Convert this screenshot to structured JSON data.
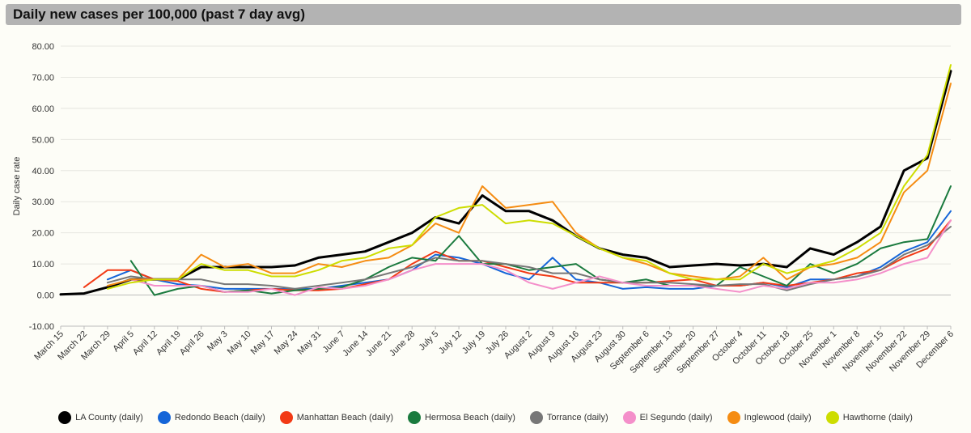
{
  "header": {
    "title": "Daily new cases per 100,000 (past 7 day avg)"
  },
  "chart_data": {
    "type": "line",
    "title": "Daily new cases per 100,000 (past 7 day avg)",
    "xlabel": "",
    "ylabel": "Daily case rate",
    "ylim": [
      -10,
      80
    ],
    "yticks": [
      "-10.00",
      "0.00",
      "10.00",
      "20.00",
      "30.00",
      "40.00",
      "50.00",
      "60.00",
      "70.00",
      "80.00"
    ],
    "grid": true,
    "legend_position": "bottom",
    "x_start": "March 15",
    "x_end": "December 6",
    "x_tick_labels": [
      "March 15",
      "March 22",
      "March 29",
      "April 5",
      "April 12",
      "April 19",
      "April 26",
      "May 3",
      "May 10",
      "May 17",
      "May 24",
      "May 31",
      "June 7",
      "June 14",
      "June 21",
      "June 28",
      "July 5",
      "July 12",
      "July 19",
      "July 26",
      "August 2",
      "August 9",
      "August 16",
      "August 23",
      "August 30",
      "September 6",
      "September 13",
      "September 20",
      "September 27",
      "October 4",
      "October 11",
      "October 18",
      "October 25",
      "November 1",
      "November 8",
      "November 15",
      "November 22",
      "November 29",
      "December 6"
    ],
    "series": [
      {
        "name": "LA County (daily)",
        "color": "#000000",
        "weekly_values": [
          0.2,
          0.5,
          2.5,
          5,
          5,
          5,
          9,
          9,
          9,
          9,
          9.5,
          12,
          13,
          14,
          17,
          20,
          25,
          23,
          32,
          27,
          27,
          24,
          19,
          15,
          13,
          12,
          9,
          9.5,
          10,
          9.5,
          10,
          9,
          15,
          13,
          17,
          22,
          40,
          44,
          72
        ]
      },
      {
        "name": "Redondo Beach (daily)",
        "color": "#1565d8",
        "weekly_values": [
          null,
          null,
          5,
          8,
          5,
          3.5,
          3,
          2,
          2,
          2,
          2,
          2,
          3,
          4,
          5,
          8,
          13,
          12,
          10,
          7,
          5,
          12,
          5,
          4,
          2,
          2.5,
          2,
          2,
          3,
          3,
          4,
          2.5,
          5,
          5,
          6,
          9,
          14,
          17,
          27
        ]
      },
      {
        "name": "Manhattan Beach (daily)",
        "color": "#f23a15",
        "weekly_values": [
          null,
          2.5,
          8,
          8,
          5,
          4.5,
          2,
          1,
          1.5,
          2,
          1.5,
          1.5,
          2,
          3.5,
          5,
          10,
          14,
          11,
          11,
          9,
          7,
          6,
          4,
          4,
          4,
          4,
          4.5,
          5,
          3,
          3,
          4,
          3,
          4,
          5,
          7,
          8,
          12,
          15,
          24
        ]
      },
      {
        "name": "Hermosa Beach (daily)",
        "color": "#1a7a3e",
        "weekly_values": [
          null,
          null,
          null,
          11,
          0,
          2,
          3,
          1,
          1.5,
          0.5,
          1.5,
          2,
          2.5,
          5,
          9,
          12,
          11,
          19,
          10,
          10,
          8,
          9,
          10,
          5,
          4,
          5,
          3,
          3,
          3,
          9,
          6,
          3,
          10,
          7,
          10,
          15,
          17,
          18,
          35
        ]
      },
      {
        "name": "Torrance (daily)",
        "color": "#777777",
        "weekly_values": [
          null,
          null,
          4,
          6,
          5,
          5,
          5,
          3.5,
          3.5,
          3,
          2,
          3,
          4,
          5,
          7,
          9,
          12,
          11,
          11,
          10,
          9,
          7,
          7,
          5,
          4,
          4,
          4,
          3.5,
          3,
          3.5,
          3.5,
          1.5,
          3.5,
          5,
          6,
          8,
          13,
          16,
          22
        ]
      },
      {
        "name": "El Segundo (daily)",
        "color": "#f48fca",
        "weekly_values": [
          null,
          null,
          null,
          5,
          3,
          3,
          3,
          1,
          1,
          2,
          0,
          2.5,
          2,
          3,
          5,
          8,
          10,
          10,
          10,
          8,
          4,
          2,
          4,
          6,
          4,
          3,
          3,
          3,
          2,
          1,
          3,
          2,
          4,
          4,
          5,
          7,
          10,
          12,
          24
        ]
      },
      {
        "name": "Inglewood (daily)",
        "color": "#f58c12",
        "weekly_values": [
          null,
          null,
          3,
          5,
          5,
          5,
          13,
          9,
          10,
          7,
          7,
          10,
          9,
          11,
          12,
          16,
          23,
          20,
          35,
          28,
          29,
          30,
          20,
          15,
          12,
          10,
          7,
          6,
          5,
          6,
          12,
          5,
          9,
          10,
          12,
          17,
          33,
          40,
          68
        ]
      },
      {
        "name": "Hawthorne (daily)",
        "color": "#cddd00",
        "weekly_values": [
          null,
          null,
          2,
          4,
          5,
          5,
          10,
          8,
          8,
          6,
          6,
          8,
          11,
          12,
          15,
          16,
          25,
          28,
          29,
          23,
          24,
          23,
          19,
          15,
          12,
          11,
          7,
          5,
          5,
          5,
          10,
          7,
          9,
          11,
          15,
          20,
          35,
          45,
          74
        ]
      }
    ]
  }
}
